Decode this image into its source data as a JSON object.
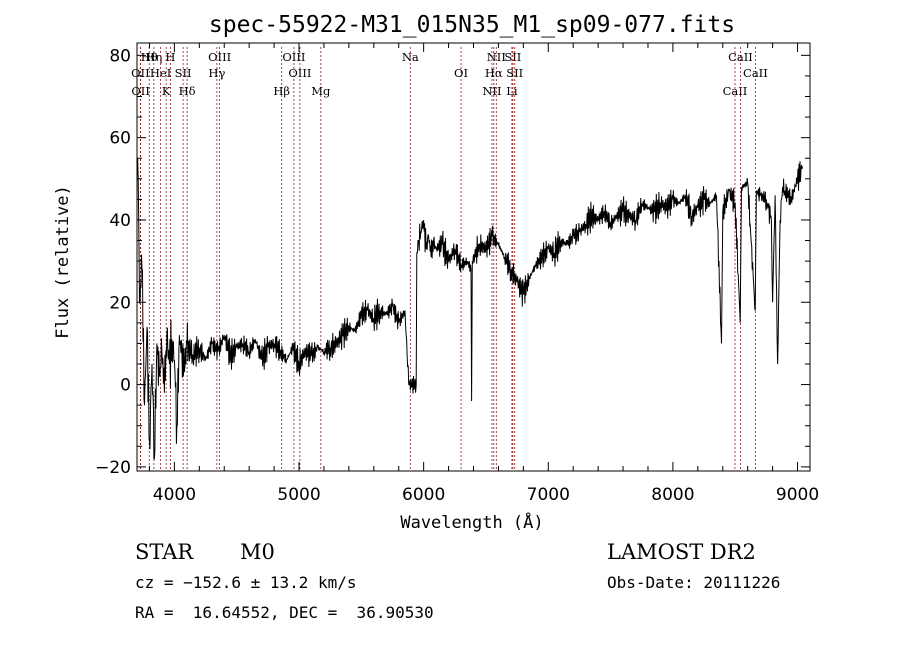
{
  "chart_data": {
    "type": "line",
    "title": "spec-55922-M31_015N35_M1_sp09-077.fits",
    "xlabel": "Wavelength (Å)",
    "ylabel": "Flux (relative)",
    "xlim": [
      3700,
      9100
    ],
    "ylim": [
      -21,
      83
    ],
    "xticks": [
      4000,
      5000,
      6000,
      7000,
      8000,
      9000
    ],
    "xtick_labels": [
      "4000",
      "5000",
      "6000",
      "7000",
      "8000",
      "9000"
    ],
    "yticks": [
      -20,
      0,
      20,
      40,
      60,
      80
    ],
    "ytick_labels": [
      "−20",
      "0",
      "20",
      "40",
      "60",
      "80"
    ],
    "grid": false,
    "legend": "none",
    "colors": {
      "spectrum": "#000000",
      "lines": "#8b1a1a",
      "axes": "#000000"
    },
    "series": [
      {
        "x": [
          3705,
          3720,
          3740,
          3760,
          3780,
          3800,
          3820,
          3840,
          3860,
          3880,
          3900,
          3920,
          3940,
          3960,
          3980,
          4000,
          4020,
          4040,
          4060,
          4080,
          4100,
          4150,
          4200,
          4250,
          4300,
          4350,
          4400,
          4450,
          4500,
          4550,
          4600,
          4650,
          4700,
          4750,
          4800,
          4850,
          4900,
          4950,
          5000,
          5050,
          5100,
          5150,
          5200,
          5250,
          5300,
          5350,
          5400,
          5450,
          5500,
          5550,
          5600,
          5650,
          5700,
          5750,
          5800,
          5850,
          5880,
          5885,
          5940,
          5945,
          5960,
          6000,
          6020,
          6040,
          6060,
          6080,
          6100,
          6150,
          6200,
          6250,
          6300,
          6350,
          6380,
          6385,
          6390,
          6450,
          6500,
          6550,
          6600,
          6650,
          6700,
          6750,
          6800,
          6850,
          6900,
          6950,
          7000,
          7050,
          7100,
          7150,
          7200,
          7250,
          7300,
          7350,
          7400,
          7450,
          7500,
          7550,
          7600,
          7650,
          7700,
          7750,
          7800,
          7850,
          7900,
          7950,
          8000,
          8050,
          8100,
          8150,
          8200,
          8250,
          8300,
          8350,
          8390,
          8400,
          8450,
          8500,
          8540,
          8550,
          8600,
          8660,
          8670,
          8700,
          8750,
          8790,
          8800,
          8820,
          8840,
          8860,
          8880,
          8900,
          8950,
          9000,
          9040
        ],
        "y": [
          55,
          20,
          28,
          -5,
          14,
          -14,
          5,
          -18,
          10,
          2,
          8,
          -2,
          12,
          5,
          11,
          6,
          -10,
          12,
          8,
          3,
          10,
          7,
          9,
          6,
          10,
          8,
          12,
          7,
          9,
          10,
          8,
          11,
          6,
          9,
          10,
          8,
          6,
          9,
          5,
          8,
          7,
          9,
          8,
          9,
          10,
          12,
          14,
          13,
          17,
          18,
          16,
          18,
          17,
          19,
          15,
          18,
          0,
          0,
          0,
          32,
          35,
          40,
          33,
          36,
          31,
          35,
          33,
          34,
          30,
          33,
          29,
          30,
          28,
          -4,
          30,
          34,
          33,
          36,
          34,
          31,
          28,
          25,
          22,
          26,
          29,
          31,
          33,
          32,
          35,
          34,
          36,
          37,
          39,
          41,
          40,
          42,
          39,
          41,
          42,
          41,
          40,
          44,
          43,
          42,
          44,
          43,
          45,
          44,
          46,
          41,
          43,
          45,
          44,
          46,
          10,
          42,
          47,
          44,
          15,
          48,
          49,
          18,
          47,
          46,
          45,
          40,
          20,
          46,
          5,
          40,
          48,
          47,
          45,
          50,
          53
        ]
      }
    ],
    "lines": [
      {
        "name": "Hθ",
        "x": 3798
      },
      {
        "name": "OII",
        "x": 3727
      },
      {
        "name": "OII",
        "x": 3729
      },
      {
        "name": "Hη",
        "x": 3835
      },
      {
        "name": "HeI",
        "x": 3889
      },
      {
        "name": "K",
        "x": 3934
      },
      {
        "name": "H",
        "x": 3968
      },
      {
        "name": "SII",
        "x": 4070
      },
      {
        "name": "Hδ",
        "x": 4102
      },
      {
        "name": "OIII",
        "x": 4363
      },
      {
        "name": "Hγ",
        "x": 4341
      },
      {
        "name": "Hβ",
        "x": 4861
      },
      {
        "name": "OIII",
        "x": 4959
      },
      {
        "name": "OIII",
        "x": 5007
      },
      {
        "name": "Mg",
        "x": 5175
      },
      {
        "name": "Na",
        "x": 5893
      },
      {
        "name": "OI",
        "x": 6300
      },
      {
        "name": "NII",
        "x": 6548
      },
      {
        "name": "NII",
        "x": 6583
      },
      {
        "name": "Hα",
        "x": 6563
      },
      {
        "name": "Li",
        "x": 6708
      },
      {
        "name": "SII",
        "x": 6716
      },
      {
        "name": "SII",
        "x": 6731
      },
      {
        "name": "CaII",
        "x": 8498
      },
      {
        "name": "CaII",
        "x": 8542
      },
      {
        "name": "CaII",
        "x": 8662
      }
    ]
  },
  "info": {
    "class": "STAR",
    "subclass": "M0",
    "survey": "LAMOST DR2",
    "redshift": "cz = −152.6 ± 13.2 km/s",
    "obs_date": "Obs-Date: 20111226",
    "coords": "RA =  16.64552, DEC =  36.90530"
  }
}
